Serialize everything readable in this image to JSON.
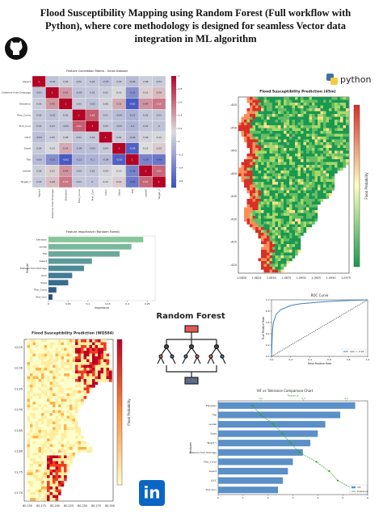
{
  "title_lines": [
    "Flood Susceptibility Mapping using Random Forest  (Full workflow with",
    "Python), where core methodology is designed for seamless Vector data",
    "integration in ML algorithm"
  ],
  "python_logo_text": "python",
  "linkedin_logo_text": "in",
  "diagram_label": "Random Forest",
  "maps": [
    {
      "title": "Flood Susceptibility Prediction (45m)",
      "colorbar_label": "Flood Probability",
      "x_tick_labels": [
        "1.0800",
        "1.0825",
        "1.0850",
        "1.0875",
        "1.0900",
        "1.0925",
        "1.0950",
        "1.0975"
      ],
      "y_tick_labels": [
        ".455",
        ".450",
        ".445",
        ".440",
        ".435",
        ".430",
        ".425",
        ".420"
      ]
    },
    {
      "title": "Flood Susceptibility Prediction (WGS84)",
      "colorbar_label": "Flood Probability",
      "x_tick_labels": [
        "80.150",
        "80.175",
        "80.200",
        "80.225",
        "80.250",
        "80.275",
        "80.300"
      ],
      "y_tick_labels": [
        "12.05",
        "12.00",
        "11.95",
        "11.90",
        "11.85",
        "11.80",
        "11.75",
        "11.70"
      ]
    }
  ],
  "chart_data": [
    {
      "type": "heatmap",
      "title": "Feature Correlation Matrix - Small Dataset",
      "categories": [
        "Aspect",
        "Distance from Drainage",
        "Elevation",
        "Plan_Curve",
        "Prof_Curv",
        "LULC",
        "Slope",
        "TWI",
        "rainfall",
        "Target_Y"
      ],
      "values": [
        [
          1,
          -0.01,
          0.05,
          0.02,
          0.01,
          -0.03,
          0.04,
          -0.05,
          0.06,
          0.03
        ],
        [
          -0.01,
          1,
          0.42,
          -0.02,
          0.01,
          0.05,
          0.12,
          -0.31,
          0.21,
          0.28
        ],
        [
          0.05,
          0.42,
          1,
          0.03,
          -0.02,
          0.08,
          0.35,
          -0.62,
          0.44,
          0.55
        ],
        [
          0.02,
          -0.02,
          0.03,
          1,
          0.65,
          0.01,
          -0.04,
          -0.12,
          0.02,
          0.01
        ],
        [
          0.01,
          0.01,
          -0.02,
          0.65,
          1,
          0.02,
          -0.03,
          -0.1,
          0.01,
          0
        ],
        [
          -0.03,
          0.05,
          0.08,
          0.01,
          0.02,
          1,
          0.04,
          -0.06,
          0.09,
          0.12
        ],
        [
          0.04,
          0.12,
          0.35,
          -0.04,
          -0.03,
          0.04,
          1,
          -0.58,
          0.15,
          0.22
        ],
        [
          -0.05,
          -0.31,
          -0.62,
          -0.12,
          -0.1,
          -0.06,
          -0.58,
          1,
          -0.38,
          -0.45
        ],
        [
          0.06,
          0.21,
          0.44,
          0.02,
          0.01,
          0.09,
          0.15,
          -0.38,
          1,
          0.61
        ],
        [
          0.03,
          0.28,
          0.55,
          0.01,
          0,
          0.12,
          0.22,
          -0.45,
          0.61,
          1
        ]
      ],
      "zlim": [
        -0.7,
        1
      ],
      "zticks": [
        -0.6,
        -0.4,
        -0.2,
        0,
        0.2,
        0.4,
        0.6,
        0.8,
        1
      ]
    },
    {
      "type": "hbar",
      "title": "Feature Importance (Random Forest)",
      "x_label": "Importance",
      "y_label": "Feature",
      "categories": [
        "Elevation",
        "rainfall",
        "TWI",
        "Aspect",
        "Distance from Drainage",
        "LULC",
        "Slope",
        "Plan_Curve",
        "Prof_Curv"
      ],
      "values": [
        0.24,
        0.21,
        0.18,
        0.11,
        0.09,
        0.06,
        0.05,
        0.02,
        0.01
      ],
      "colors": [
        "#86c79a",
        "#79b99a",
        "#6aa99a",
        "#5c9a98",
        "#4e8a95",
        "#437b92",
        "#3a6c8e",
        "#335d88",
        "#2d4f7f"
      ],
      "xlim": [
        0,
        0.27
      ],
      "xticks": [
        0,
        0.05,
        0.1,
        0.15,
        0.2,
        0.25
      ]
    },
    {
      "type": "line",
      "title": "ROC Curve",
      "x_label": "False Positive Rate",
      "y_label": "True Positive Rate",
      "series": [
        {
          "name": "AUC = 0.94",
          "color": "#3b82c4",
          "x": [
            0,
            0.01,
            0.02,
            0.05,
            0.1,
            0.2,
            0.3,
            0.5,
            0.7,
            1
          ],
          "values": [
            0,
            0.45,
            0.6,
            0.75,
            0.83,
            0.9,
            0.93,
            0.96,
            0.98,
            1
          ]
        },
        {
          "color": "#222222",
          "dash": true,
          "x": [
            0,
            1
          ],
          "values": [
            0,
            1
          ]
        }
      ],
      "xlim": [
        0,
        1
      ],
      "ylim": [
        0,
        1
      ],
      "xticks": [
        {
          "value": 0,
          "label": "0.0"
        },
        0.2,
        0.4,
        0.6,
        0.8,
        {
          "value": 1,
          "label": "1.0"
        }
      ],
      "yticks": [
        {
          "value": 0,
          "label": "0.0"
        },
        0.2,
        0.4,
        0.6,
        0.8,
        {
          "value": 1,
          "label": "1.0"
        }
      ],
      "legend": "lower-right"
    },
    {
      "type": "vif",
      "title": "VIF vs Tolerance Comparison Chart",
      "x2_label": "Tolerance",
      "y_label": "Features",
      "categories": [
        "Elevation",
        "TWI",
        "rainfall",
        "Slope",
        "Target_Y",
        "Distance from Drainage",
        "Plan_Curve",
        "Aspect",
        "LULC",
        "Prof_Curv"
      ],
      "series": [
        {
          "name": "VIF",
          "color": "#5b8fc7",
          "values": [
            5.5,
            4.9,
            4.3,
            4.0,
            3.7,
            3.4,
            3.0,
            2.8,
            2.6,
            2.4
          ]
        },
        {
          "name": "Tolerance",
          "color": "#2ca02c",
          "axis": "x2",
          "values": [
            0.18,
            0.2,
            0.23,
            0.25,
            0.27,
            0.29,
            0.33,
            0.36,
            0.38,
            0.42
          ]
        }
      ],
      "xlim": [
        0,
        6
      ],
      "xticks": [
        0,
        1,
        2,
        3,
        4,
        5,
        6
      ],
      "x2lim": [
        0.1,
        0.45
      ],
      "x2ticks": [
        0.2,
        0.3,
        0.4
      ],
      "legend": "lower-right"
    }
  ]
}
